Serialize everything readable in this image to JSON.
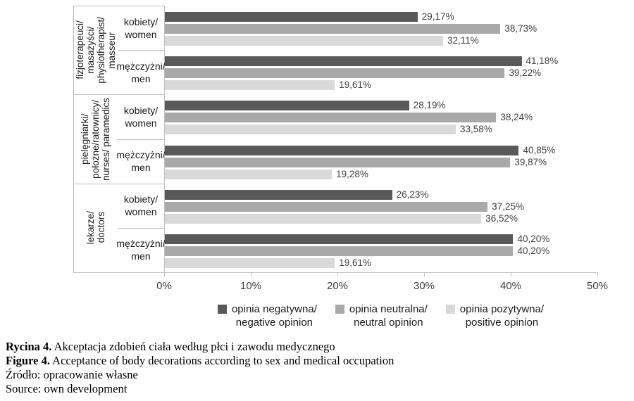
{
  "chart_data": {
    "type": "bar",
    "orientation": "horizontal",
    "grid": false,
    "legend_position": "bottom",
    "value_axis": {
      "min": 0,
      "max": 50,
      "tick_labels": [
        "0%",
        "10%",
        "20%",
        "30%",
        "40%",
        "50%"
      ]
    },
    "series": [
      {
        "name_lines": [
          "opinia negatywna/",
          "negative opinion"
        ],
        "color": "#595959"
      },
      {
        "name_lines": [
          "opinia neutralna/",
          "neutral opinion"
        ],
        "color": "#a9a9a9"
      },
      {
        "name_lines": [
          "opinia pozytywna/",
          "positive opinion"
        ],
        "color": "#d9d9d9"
      }
    ],
    "groups": [
      {
        "label_lines": [
          "fizjoterapeuci/",
          "masażyści/",
          "physiotherapist/",
          "masseur"
        ],
        "rows": [
          {
            "label_lines": [
              "kobiety/",
              "women"
            ],
            "values": [
              29.17,
              38.73,
              32.11
            ],
            "value_labels": [
              "29,17%",
              "38,73%",
              "32,11%"
            ]
          },
          {
            "label_lines": [
              "mężczyżni/",
              "men"
            ],
            "values": [
              41.18,
              39.22,
              19.61
            ],
            "value_labels": [
              "41,18%",
              "39,22%",
              "19,61%"
            ]
          }
        ]
      },
      {
        "label_lines": [
          "pielęgniarki/",
          "położne/ratownicy/",
          "nurses/ paramedics"
        ],
        "rows": [
          {
            "label_lines": [
              "kobiety/",
              "women"
            ],
            "values": [
              28.19,
              38.24,
              33.58
            ],
            "value_labels": [
              "28,19%",
              "38,24%",
              "33,58%"
            ]
          },
          {
            "label_lines": [
              "mężczyżni/",
              "men"
            ],
            "values": [
              40.85,
              39.87,
              19.28
            ],
            "value_labels": [
              "40,85%",
              "39,87%",
              "19,28%"
            ]
          }
        ]
      },
      {
        "label_lines": [
          "lekarze/",
          "doctors"
        ],
        "rows": [
          {
            "label_lines": [
              "kobiety/",
              "women"
            ],
            "values": [
              26.23,
              37.25,
              36.52
            ],
            "value_labels": [
              "26,23%",
              "37,25%",
              "36,52%"
            ]
          },
          {
            "label_lines": [
              "mężczyżni/",
              "men"
            ],
            "values": [
              40.2,
              40.2,
              19.61
            ],
            "value_labels": [
              "40,20%",
              "40,20%",
              "19,61%"
            ]
          }
        ]
      }
    ]
  },
  "caption": {
    "line1_bold": "Rycina 4.",
    "line1_rest": " Akceptacja zdobień ciała według płci i zawodu medycznego",
    "line2_bold": "Figure 4.",
    "line2_rest": " Acceptance of body decorations according to sex and medical occupation",
    "line3": "Źródło: opracowanie własne",
    "line4": "Source: own development"
  },
  "colors": {
    "axis_line": "#bfbfbf",
    "tick_text": "#404040",
    "value_label_text": "#404040"
  }
}
